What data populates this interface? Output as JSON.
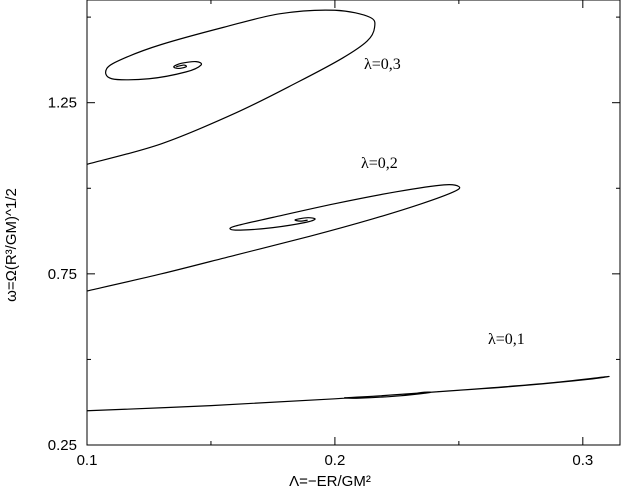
{
  "chart_data": {
    "type": "line",
    "xlabel": "Λ=−ER/GM²",
    "ylabel": "ω=Ω(R³/GM)^1/2",
    "xlim": [
      0.1,
      0.315
    ],
    "ylim": [
      0.25,
      1.55
    ],
    "x_ticks": [
      0.1,
      0.2,
      0.3
    ],
    "x_tick_labels": [
      "0.1",
      "0.2",
      "0.3"
    ],
    "y_ticks": [
      0.25,
      0.75,
      1.25
    ],
    "y_tick_labels": [
      "0.25",
      "0.75",
      "1.25"
    ],
    "grid": false,
    "series": [
      {
        "name": "λ=0,3",
        "points": [
          [
            0.1,
            1.07
          ],
          [
            0.13,
            1.13
          ],
          [
            0.16,
            1.22
          ],
          [
            0.185,
            1.31
          ],
          [
            0.203,
            1.38
          ],
          [
            0.213,
            1.43
          ],
          [
            0.216,
            1.47
          ],
          [
            0.214,
            1.5
          ],
          [
            0.2,
            1.52
          ],
          [
            0.178,
            1.51
          ],
          [
            0.155,
            1.47
          ],
          [
            0.13,
            1.42
          ],
          [
            0.115,
            1.38
          ],
          [
            0.108,
            1.35
          ],
          [
            0.11,
            1.32
          ],
          [
            0.125,
            1.32
          ],
          [
            0.14,
            1.34
          ],
          [
            0.146,
            1.36
          ],
          [
            0.144,
            1.37
          ],
          [
            0.138,
            1.365
          ],
          [
            0.135,
            1.355
          ],
          [
            0.137,
            1.35
          ],
          [
            0.14,
            1.355
          ],
          [
            0.139,
            1.36
          ],
          [
            0.136,
            1.355
          ]
        ]
      },
      {
        "name": "λ=0,2",
        "points": [
          [
            0.1,
            0.7
          ],
          [
            0.13,
            0.75
          ],
          [
            0.16,
            0.805
          ],
          [
            0.19,
            0.86
          ],
          [
            0.215,
            0.91
          ],
          [
            0.235,
            0.955
          ],
          [
            0.248,
            0.99
          ],
          [
            0.25,
            1.005
          ],
          [
            0.244,
            1.01
          ],
          [
            0.225,
            0.99
          ],
          [
            0.2,
            0.955
          ],
          [
            0.175,
            0.915
          ],
          [
            0.16,
            0.89
          ],
          [
            0.158,
            0.88
          ],
          [
            0.163,
            0.878
          ],
          [
            0.175,
            0.885
          ],
          [
            0.188,
            0.9
          ],
          [
            0.192,
            0.91
          ],
          [
            0.189,
            0.914
          ],
          [
            0.184,
            0.908
          ],
          [
            0.186,
            0.904
          ],
          [
            0.189,
            0.907
          ]
        ]
      },
      {
        "name": "λ=0,1",
        "points": [
          [
            0.1,
            0.35
          ],
          [
            0.15,
            0.365
          ],
          [
            0.2,
            0.385
          ],
          [
            0.25,
            0.41
          ],
          [
            0.285,
            0.43
          ],
          [
            0.31,
            0.45
          ],
          [
            0.3,
            0.44
          ],
          [
            0.27,
            0.42
          ],
          [
            0.24,
            0.405
          ],
          [
            0.215,
            0.392
          ],
          [
            0.204,
            0.388
          ],
          [
            0.21,
            0.387
          ],
          [
            0.225,
            0.393
          ],
          [
            0.238,
            0.403
          ],
          [
            0.236,
            0.404
          ],
          [
            0.232,
            0.4
          ],
          [
            0.236,
            0.401
          ],
          [
            0.237,
            0.402
          ]
        ]
      }
    ]
  }
}
